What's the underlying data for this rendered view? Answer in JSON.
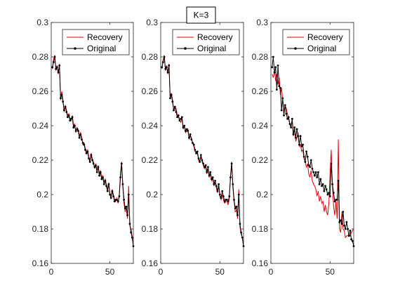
{
  "figure": {
    "title": "K=3"
  },
  "chart_data": [
    {
      "type": "line",
      "xlim": [
        0,
        70
      ],
      "ylim": [
        0.16,
        0.3
      ],
      "xticks": [
        0,
        50
      ],
      "yticks": [
        0.16,
        0.18,
        0.2,
        0.22,
        0.24,
        0.26,
        0.28,
        0.3
      ],
      "xtick_labels": [
        "0",
        "50"
      ],
      "ytick_labels": [
        "0.16",
        "0.18",
        "0.2",
        "0.22",
        "0.24",
        "0.26",
        "0.28",
        "0.3"
      ],
      "legend_position": "top-right",
      "x": [
        1,
        2,
        3,
        4,
        5,
        6,
        7,
        8,
        9,
        10,
        11,
        12,
        13,
        14,
        15,
        16,
        17,
        18,
        19,
        20,
        21,
        22,
        23,
        24,
        25,
        26,
        27,
        28,
        29,
        30,
        31,
        32,
        33,
        34,
        35,
        36,
        37,
        38,
        39,
        40,
        41,
        42,
        43,
        44,
        45,
        46,
        47,
        48,
        49,
        50,
        51,
        52,
        53,
        54,
        55,
        56,
        57,
        58,
        59,
        60,
        61,
        62,
        63,
        64,
        65,
        66,
        67,
        68,
        69,
        70
      ],
      "series": [
        {
          "name": "Recovery",
          "color": "#e8000b",
          "marker": "none",
          "values": [
            0.273,
            0.279,
            0.281,
            0.272,
            0.275,
            0.27,
            0.276,
            0.255,
            0.26,
            0.255,
            0.248,
            0.252,
            0.249,
            0.246,
            0.247,
            0.244,
            0.243,
            0.246,
            0.24,
            0.241,
            0.236,
            0.239,
            0.238,
            0.234,
            0.236,
            0.233,
            0.229,
            0.23,
            0.227,
            0.225,
            0.226,
            0.222,
            0.22,
            0.224,
            0.221,
            0.219,
            0.215,
            0.218,
            0.214,
            0.217,
            0.212,
            0.214,
            0.21,
            0.211,
            0.207,
            0.209,
            0.206,
            0.203,
            0.207,
            0.201,
            0.199,
            0.203,
            0.2,
            0.197,
            0.196,
            0.198,
            0.195,
            0.2,
            0.212,
            0.219,
            0.205,
            0.195,
            0.19,
            0.192,
            0.186,
            0.205,
            0.182,
            0.18,
            0.176,
            0.171
          ]
        },
        {
          "name": "Original",
          "color": "#000000",
          "marker": "dot",
          "values": [
            0.274,
            0.277,
            0.28,
            0.273,
            0.274,
            0.271,
            0.275,
            0.256,
            0.258,
            0.254,
            0.249,
            0.251,
            0.248,
            0.245,
            0.246,
            0.243,
            0.244,
            0.245,
            0.239,
            0.24,
            0.237,
            0.238,
            0.237,
            0.233,
            0.235,
            0.232,
            0.23,
            0.229,
            0.226,
            0.224,
            0.225,
            0.221,
            0.219,
            0.223,
            0.22,
            0.218,
            0.216,
            0.217,
            0.213,
            0.216,
            0.211,
            0.213,
            0.209,
            0.21,
            0.206,
            0.208,
            0.205,
            0.202,
            0.206,
            0.2,
            0.198,
            0.202,
            0.199,
            0.196,
            0.197,
            0.197,
            0.196,
            0.199,
            0.21,
            0.218,
            0.206,
            0.197,
            0.192,
            0.193,
            0.188,
            0.2,
            0.183,
            0.178,
            0.175,
            0.17
          ]
        }
      ]
    },
    {
      "type": "line",
      "xlim": [
        0,
        70
      ],
      "ylim": [
        0.16,
        0.3
      ],
      "xticks": [
        0,
        50
      ],
      "yticks": [
        0.16,
        0.18,
        0.2,
        0.22,
        0.24,
        0.26,
        0.28,
        0.3
      ],
      "xtick_labels": [
        "0",
        "50"
      ],
      "ytick_labels": [
        "0.16",
        "0.18",
        "0.2",
        "0.22",
        "0.24",
        "0.26",
        "0.28",
        "0.3"
      ],
      "legend_position": "top-right",
      "x": [
        1,
        2,
        3,
        4,
        5,
        6,
        7,
        8,
        9,
        10,
        11,
        12,
        13,
        14,
        15,
        16,
        17,
        18,
        19,
        20,
        21,
        22,
        23,
        24,
        25,
        26,
        27,
        28,
        29,
        30,
        31,
        32,
        33,
        34,
        35,
        36,
        37,
        38,
        39,
        40,
        41,
        42,
        43,
        44,
        45,
        46,
        47,
        48,
        49,
        50,
        51,
        52,
        53,
        54,
        55,
        56,
        57,
        58,
        59,
        60,
        61,
        62,
        63,
        64,
        65,
        66,
        67,
        68,
        69,
        70
      ],
      "series": [
        {
          "name": "Recovery",
          "color": "#e8000b",
          "marker": "none",
          "values": [
            0.273,
            0.278,
            0.281,
            0.272,
            0.275,
            0.27,
            0.276,
            0.256,
            0.259,
            0.255,
            0.249,
            0.251,
            0.25,
            0.246,
            0.245,
            0.243,
            0.242,
            0.244,
            0.238,
            0.24,
            0.236,
            0.237,
            0.238,
            0.232,
            0.234,
            0.233,
            0.23,
            0.228,
            0.225,
            0.225,
            0.224,
            0.22,
            0.219,
            0.222,
            0.219,
            0.217,
            0.215,
            0.216,
            0.212,
            0.215,
            0.21,
            0.212,
            0.208,
            0.209,
            0.205,
            0.207,
            0.204,
            0.201,
            0.205,
            0.199,
            0.197,
            0.2,
            0.197,
            0.195,
            0.196,
            0.196,
            0.194,
            0.198,
            0.211,
            0.219,
            0.204,
            0.196,
            0.19,
            0.191,
            0.186,
            0.203,
            0.181,
            0.177,
            0.175,
            0.17
          ]
        },
        {
          "name": "Original",
          "color": "#000000",
          "marker": "dot",
          "values": [
            0.274,
            0.277,
            0.28,
            0.273,
            0.274,
            0.271,
            0.275,
            0.256,
            0.258,
            0.254,
            0.249,
            0.251,
            0.248,
            0.245,
            0.246,
            0.243,
            0.244,
            0.245,
            0.239,
            0.24,
            0.237,
            0.238,
            0.237,
            0.233,
            0.235,
            0.232,
            0.23,
            0.229,
            0.226,
            0.224,
            0.225,
            0.221,
            0.219,
            0.223,
            0.22,
            0.218,
            0.216,
            0.217,
            0.213,
            0.216,
            0.211,
            0.213,
            0.209,
            0.21,
            0.206,
            0.208,
            0.205,
            0.202,
            0.206,
            0.2,
            0.198,
            0.202,
            0.199,
            0.196,
            0.197,
            0.197,
            0.196,
            0.199,
            0.21,
            0.218,
            0.206,
            0.197,
            0.192,
            0.193,
            0.188,
            0.2,
            0.183,
            0.178,
            0.175,
            0.17
          ]
        }
      ]
    },
    {
      "type": "line",
      "xlim": [
        0,
        70
      ],
      "ylim": [
        0.16,
        0.3
      ],
      "xticks": [
        0,
        50
      ],
      "yticks": [
        0.16,
        0.18,
        0.2,
        0.22,
        0.24,
        0.26,
        0.28,
        0.3
      ],
      "xtick_labels": [
        "0",
        "50"
      ],
      "ytick_labels": [
        "0.16",
        "0.18",
        "0.2",
        "0.22",
        "0.24",
        "0.26",
        "0.28",
        "0.3"
      ],
      "legend_position": "top-right",
      "x": [
        1,
        2,
        3,
        4,
        5,
        6,
        7,
        8,
        9,
        10,
        11,
        12,
        13,
        14,
        15,
        16,
        17,
        18,
        19,
        20,
        21,
        22,
        23,
        24,
        25,
        26,
        27,
        28,
        29,
        30,
        31,
        32,
        33,
        34,
        35,
        36,
        37,
        38,
        39,
        40,
        41,
        42,
        43,
        44,
        45,
        46,
        47,
        48,
        49,
        50,
        51,
        52,
        53,
        54,
        55,
        56,
        57,
        58,
        59,
        60,
        61,
        62,
        63,
        64,
        65,
        66,
        67,
        68,
        69,
        70
      ],
      "series": [
        {
          "name": "Recovery",
          "color": "#e8000b",
          "marker": "none",
          "values": [
            0.27,
            0.268,
            0.272,
            0.266,
            0.27,
            0.264,
            0.268,
            0.258,
            0.262,
            0.255,
            0.248,
            0.252,
            0.25,
            0.247,
            0.244,
            0.241,
            0.24,
            0.243,
            0.234,
            0.238,
            0.231,
            0.233,
            0.236,
            0.228,
            0.229,
            0.225,
            0.226,
            0.221,
            0.219,
            0.216,
            0.218,
            0.212,
            0.21,
            0.214,
            0.208,
            0.206,
            0.205,
            0.203,
            0.199,
            0.202,
            0.196,
            0.199,
            0.195,
            0.196,
            0.19,
            0.194,
            0.19,
            0.188,
            0.195,
            0.212,
            0.226,
            0.205,
            0.193,
            0.188,
            0.196,
            0.186,
            0.232,
            0.18,
            0.178,
            0.19,
            0.18,
            0.179,
            0.175,
            0.176,
            0.176,
            0.177,
            0.176,
            0.178,
            0.179,
            0.18
          ]
        },
        {
          "name": "Original",
          "color": "#000000",
          "marker": "dot",
          "values": [
            0.274,
            0.28,
            0.271,
            0.274,
            0.261,
            0.275,
            0.263,
            0.262,
            0.249,
            0.256,
            0.246,
            0.252,
            0.247,
            0.244,
            0.245,
            0.241,
            0.239,
            0.244,
            0.235,
            0.239,
            0.233,
            0.238,
            0.234,
            0.229,
            0.234,
            0.228,
            0.229,
            0.222,
            0.219,
            0.225,
            0.222,
            0.217,
            0.216,
            0.22,
            0.215,
            0.213,
            0.211,
            0.213,
            0.21,
            0.213,
            0.206,
            0.209,
            0.205,
            0.206,
            0.202,
            0.205,
            0.203,
            0.2,
            0.201,
            0.199,
            0.218,
            0.206,
            0.201,
            0.196,
            0.197,
            0.197,
            0.208,
            0.184,
            0.185,
            0.183,
            0.19,
            0.182,
            0.18,
            0.184,
            0.18,
            0.176,
            0.179,
            0.174,
            0.173,
            0.17
          ]
        }
      ]
    }
  ]
}
